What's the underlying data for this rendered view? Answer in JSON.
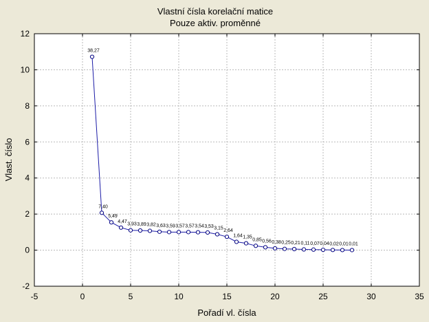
{
  "chart_data": {
    "type": "line",
    "title": "Vlastní čísla  korelační matice",
    "subtitle": "Pouze aktiv. proměnné",
    "xlabel": "Pořadí vl. čísla",
    "ylabel": "Vlast. číslo",
    "xlim": [
      -5,
      35
    ],
    "ylim": [
      -2,
      12
    ],
    "xticks": [
      -5,
      0,
      5,
      10,
      15,
      20,
      25,
      30,
      35
    ],
    "yticks": [
      -2,
      0,
      2,
      4,
      6,
      8,
      10,
      12
    ],
    "grid": true,
    "colors": {
      "line": "#1a1aa6",
      "marker_fill": "#ffffff",
      "grid": "#b8b8b8",
      "background": "#ece9d8",
      "plot_bg": "#ffffff"
    },
    "x": [
      1,
      2,
      3,
      4,
      5,
      6,
      7,
      8,
      9,
      10,
      11,
      12,
      13,
      14,
      15,
      16,
      17,
      18,
      19,
      20,
      21,
      22,
      23,
      24,
      25,
      26,
      27,
      28
    ],
    "values": [
      10.72,
      2.07,
      1.54,
      1.25,
      1.1,
      1.09,
      1.07,
      1.02,
      1.0,
      1.0,
      1.0,
      0.99,
      0.98,
      0.88,
      0.74,
      0.46,
      0.38,
      0.24,
      0.16,
      0.1,
      0.07,
      0.06,
      0.04,
      0.03,
      0.02,
      0.01,
      0.005,
      0.003
    ],
    "data_labels": [
      "38,27",
      "7,40",
      "5,49",
      "4,47",
      "3,93",
      "3,89",
      "3,82",
      "3,63",
      "3,59",
      "3,57",
      "3,57",
      "3,54",
      "3,53",
      "3,15",
      "2,64",
      "1,64",
      "1,35",
      "0,85",
      "0,56",
      "0,38",
      "0,25",
      "0,21",
      "0,11",
      "0,07",
      "0,04",
      "0,02",
      "0,01",
      "0,01"
    ]
  }
}
